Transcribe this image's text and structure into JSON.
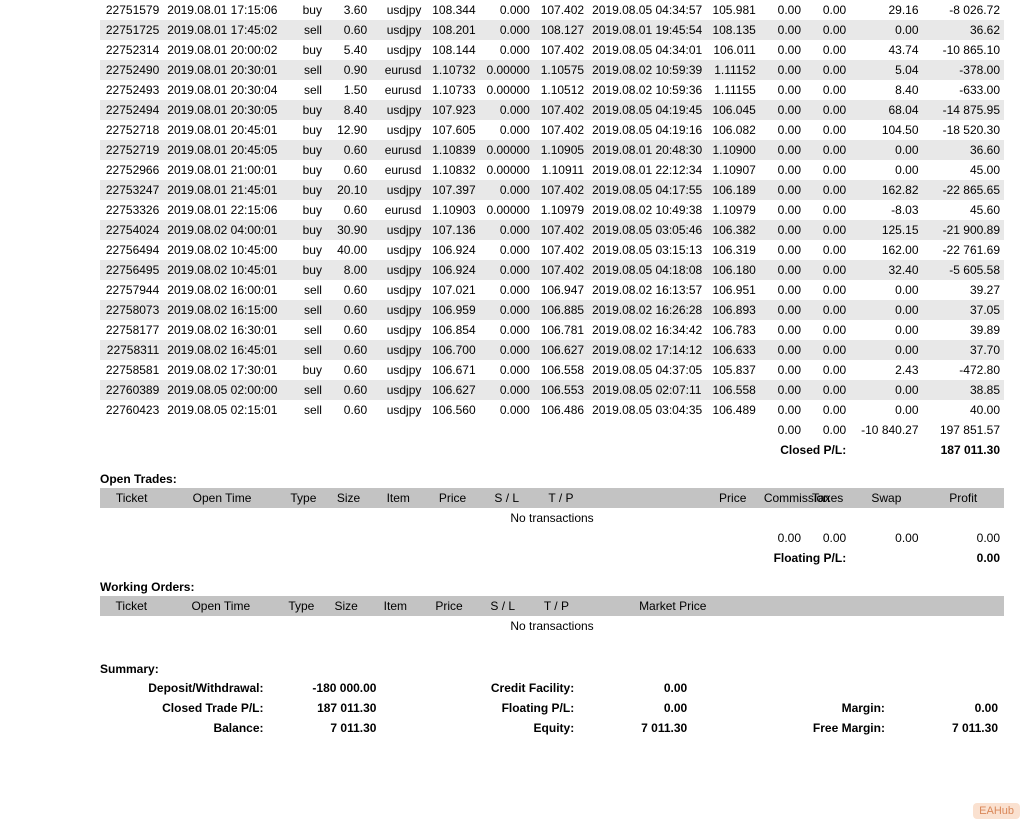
{
  "colors": {
    "row_odd": "#e8e8e8",
    "row_even": "#ffffff",
    "header_bg": "#c3c3c3"
  },
  "closed_rows": [
    {
      "ticket": "22751579",
      "t1": "2019.08.01 17:15:06",
      "type": "buy",
      "size": "3.60",
      "item": "usdjpy",
      "p1": "108.344",
      "sl": "0.000",
      "tp": "107.402",
      "t2": "2019.08.05 04:34:57",
      "p2": "105.981",
      "comm": "0.00",
      "tax": "0.00",
      "swap": "29.16",
      "profit": "-8 026.72"
    },
    {
      "ticket": "22751725",
      "t1": "2019.08.01 17:45:02",
      "type": "sell",
      "size": "0.60",
      "item": "usdjpy",
      "p1": "108.201",
      "sl": "0.000",
      "tp": "108.127",
      "t2": "2019.08.01 19:45:54",
      "p2": "108.135",
      "comm": "0.00",
      "tax": "0.00",
      "swap": "0.00",
      "profit": "36.62"
    },
    {
      "ticket": "22752314",
      "t1": "2019.08.01 20:00:02",
      "type": "buy",
      "size": "5.40",
      "item": "usdjpy",
      "p1": "108.144",
      "sl": "0.000",
      "tp": "107.402",
      "t2": "2019.08.05 04:34:01",
      "p2": "106.011",
      "comm": "0.00",
      "tax": "0.00",
      "swap": "43.74",
      "profit": "-10 865.10"
    },
    {
      "ticket": "22752490",
      "t1": "2019.08.01 20:30:01",
      "type": "sell",
      "size": "0.90",
      "item": "eurusd",
      "p1": "1.10732",
      "sl": "0.00000",
      "tp": "1.10575",
      "t2": "2019.08.02 10:59:39",
      "p2": "1.11152",
      "comm": "0.00",
      "tax": "0.00",
      "swap": "5.04",
      "profit": "-378.00"
    },
    {
      "ticket": "22752493",
      "t1": "2019.08.01 20:30:04",
      "type": "sell",
      "size": "1.50",
      "item": "eurusd",
      "p1": "1.10733",
      "sl": "0.00000",
      "tp": "1.10512",
      "t2": "2019.08.02 10:59:36",
      "p2": "1.11155",
      "comm": "0.00",
      "tax": "0.00",
      "swap": "8.40",
      "profit": "-633.00"
    },
    {
      "ticket": "22752494",
      "t1": "2019.08.01 20:30:05",
      "type": "buy",
      "size": "8.40",
      "item": "usdjpy",
      "p1": "107.923",
      "sl": "0.000",
      "tp": "107.402",
      "t2": "2019.08.05 04:19:45",
      "p2": "106.045",
      "comm": "0.00",
      "tax": "0.00",
      "swap": "68.04",
      "profit": "-14 875.95"
    },
    {
      "ticket": "22752718",
      "t1": "2019.08.01 20:45:01",
      "type": "buy",
      "size": "12.90",
      "item": "usdjpy",
      "p1": "107.605",
      "sl": "0.000",
      "tp": "107.402",
      "t2": "2019.08.05 04:19:16",
      "p2": "106.082",
      "comm": "0.00",
      "tax": "0.00",
      "swap": "104.50",
      "profit": "-18 520.30"
    },
    {
      "ticket": "22752719",
      "t1": "2019.08.01 20:45:05",
      "type": "buy",
      "size": "0.60",
      "item": "eurusd",
      "p1": "1.10839",
      "sl": "0.00000",
      "tp": "1.10905",
      "t2": "2019.08.01 20:48:30",
      "p2": "1.10900",
      "comm": "0.00",
      "tax": "0.00",
      "swap": "0.00",
      "profit": "36.60"
    },
    {
      "ticket": "22752966",
      "t1": "2019.08.01 21:00:01",
      "type": "buy",
      "size": "0.60",
      "item": "eurusd",
      "p1": "1.10832",
      "sl": "0.00000",
      "tp": "1.10911",
      "t2": "2019.08.01 22:12:34",
      "p2": "1.10907",
      "comm": "0.00",
      "tax": "0.00",
      "swap": "0.00",
      "profit": "45.00"
    },
    {
      "ticket": "22753247",
      "t1": "2019.08.01 21:45:01",
      "type": "buy",
      "size": "20.10",
      "item": "usdjpy",
      "p1": "107.397",
      "sl": "0.000",
      "tp": "107.402",
      "t2": "2019.08.05 04:17:55",
      "p2": "106.189",
      "comm": "0.00",
      "tax": "0.00",
      "swap": "162.82",
      "profit": "-22 865.65"
    },
    {
      "ticket": "22753326",
      "t1": "2019.08.01 22:15:06",
      "type": "buy",
      "size": "0.60",
      "item": "eurusd",
      "p1": "1.10903",
      "sl": "0.00000",
      "tp": "1.10979",
      "t2": "2019.08.02 10:49:38",
      "p2": "1.10979",
      "comm": "0.00",
      "tax": "0.00",
      "swap": "-8.03",
      "profit": "45.60"
    },
    {
      "ticket": "22754024",
      "t1": "2019.08.02 04:00:01",
      "type": "buy",
      "size": "30.90",
      "item": "usdjpy",
      "p1": "107.136",
      "sl": "0.000",
      "tp": "107.402",
      "t2": "2019.08.05 03:05:46",
      "p2": "106.382",
      "comm": "0.00",
      "tax": "0.00",
      "swap": "125.15",
      "profit": "-21 900.89"
    },
    {
      "ticket": "22756494",
      "t1": "2019.08.02 10:45:00",
      "type": "buy",
      "size": "40.00",
      "item": "usdjpy",
      "p1": "106.924",
      "sl": "0.000",
      "tp": "107.402",
      "t2": "2019.08.05 03:15:13",
      "p2": "106.319",
      "comm": "0.00",
      "tax": "0.00",
      "swap": "162.00",
      "profit": "-22 761.69"
    },
    {
      "ticket": "22756495",
      "t1": "2019.08.02 10:45:01",
      "type": "buy",
      "size": "8.00",
      "item": "usdjpy",
      "p1": "106.924",
      "sl": "0.000",
      "tp": "107.402",
      "t2": "2019.08.05 04:18:08",
      "p2": "106.180",
      "comm": "0.00",
      "tax": "0.00",
      "swap": "32.40",
      "profit": "-5 605.58"
    },
    {
      "ticket": "22757944",
      "t1": "2019.08.02 16:00:01",
      "type": "sell",
      "size": "0.60",
      "item": "usdjpy",
      "p1": "107.021",
      "sl": "0.000",
      "tp": "106.947",
      "t2": "2019.08.02 16:13:57",
      "p2": "106.951",
      "comm": "0.00",
      "tax": "0.00",
      "swap": "0.00",
      "profit": "39.27"
    },
    {
      "ticket": "22758073",
      "t1": "2019.08.02 16:15:00",
      "type": "sell",
      "size": "0.60",
      "item": "usdjpy",
      "p1": "106.959",
      "sl": "0.000",
      "tp": "106.885",
      "t2": "2019.08.02 16:26:28",
      "p2": "106.893",
      "comm": "0.00",
      "tax": "0.00",
      "swap": "0.00",
      "profit": "37.05"
    },
    {
      "ticket": "22758177",
      "t1": "2019.08.02 16:30:01",
      "type": "sell",
      "size": "0.60",
      "item": "usdjpy",
      "p1": "106.854",
      "sl": "0.000",
      "tp": "106.781",
      "t2": "2019.08.02 16:34:42",
      "p2": "106.783",
      "comm": "0.00",
      "tax": "0.00",
      "swap": "0.00",
      "profit": "39.89"
    },
    {
      "ticket": "22758311",
      "t1": "2019.08.02 16:45:01",
      "type": "sell",
      "size": "0.60",
      "item": "usdjpy",
      "p1": "106.700",
      "sl": "0.000",
      "tp": "106.627",
      "t2": "2019.08.02 17:14:12",
      "p2": "106.633",
      "comm": "0.00",
      "tax": "0.00",
      "swap": "0.00",
      "profit": "37.70"
    },
    {
      "ticket": "22758581",
      "t1": "2019.08.02 17:30:01",
      "type": "buy",
      "size": "0.60",
      "item": "usdjpy",
      "p1": "106.671",
      "sl": "0.000",
      "tp": "106.558",
      "t2": "2019.08.05 04:37:05",
      "p2": "105.837",
      "comm": "0.00",
      "tax": "0.00",
      "swap": "2.43",
      "profit": "-472.80"
    },
    {
      "ticket": "22760389",
      "t1": "2019.08.05 02:00:00",
      "type": "sell",
      "size": "0.60",
      "item": "usdjpy",
      "p1": "106.627",
      "sl": "0.000",
      "tp": "106.553",
      "t2": "2019.08.05 02:07:11",
      "p2": "106.558",
      "comm": "0.00",
      "tax": "0.00",
      "swap": "0.00",
      "profit": "38.85"
    },
    {
      "ticket": "22760423",
      "t1": "2019.08.05 02:15:01",
      "type": "sell",
      "size": "0.60",
      "item": "usdjpy",
      "p1": "106.560",
      "sl": "0.000",
      "tp": "106.486",
      "t2": "2019.08.05 03:04:35",
      "p2": "106.489",
      "comm": "0.00",
      "tax": "0.00",
      "swap": "0.00",
      "profit": "40.00"
    }
  ],
  "closed_totals": {
    "comm": "0.00",
    "tax": "0.00",
    "swap": "-10 840.27",
    "profit": "197 851.57"
  },
  "closed_pl": {
    "label": "Closed P/L:",
    "value": "187 011.30"
  },
  "open": {
    "title": "Open Trades:",
    "headers": [
      "Ticket",
      "Open Time",
      "Type",
      "Size",
      "Item",
      "Price",
      "S / L",
      "T / P",
      "",
      "Price",
      "Commission",
      "Taxes",
      "Swap",
      "Profit"
    ],
    "empty": "No transactions",
    "totals": {
      "comm": "0.00",
      "tax": "0.00",
      "swap": "0.00",
      "profit": "0.00"
    },
    "float_label": "Floating P/L:",
    "float_value": "0.00"
  },
  "working": {
    "title": "Working Orders:",
    "headers": [
      "Ticket",
      "Open Time",
      "Type",
      "Size",
      "Item",
      "Price",
      "S / L",
      "T / P",
      "Market Price"
    ],
    "empty": "No transactions"
  },
  "summary": {
    "title": "Summary:",
    "dep_label": "Deposit/Withdrawal:",
    "dep_val": "-180 000.00",
    "credit_label": "Credit Facility:",
    "credit_val": "0.00",
    "cpl_label": "Closed Trade P/L:",
    "cpl_val": "187 011.30",
    "fpl_label": "Floating P/L:",
    "fpl_val": "0.00",
    "margin_label": "Margin:",
    "margin_val": "0.00",
    "bal_label": "Balance:",
    "bal_val": "7 011.30",
    "eq_label": "Equity:",
    "eq_val": "7 011.30",
    "fm_label": "Free Margin:",
    "fm_val": "7 011.30"
  },
  "watermark": "EAHub"
}
